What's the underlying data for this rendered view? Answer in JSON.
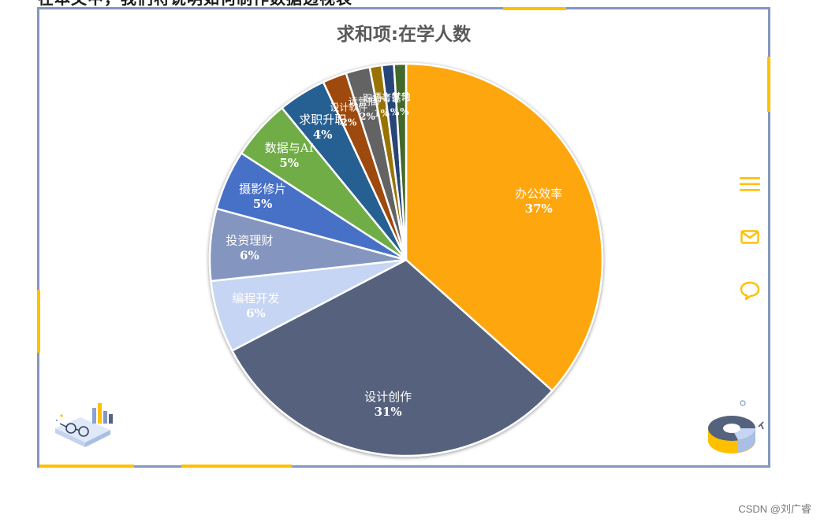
{
  "top_cut_text": "在本文中，我们将说明如何制作数据透视表",
  "chart_data": {
    "type": "pie",
    "title": "求和项:在学人数",
    "categories": [
      "办公效率",
      "设计创作",
      "编程开发",
      "投资理财",
      "摄影修片",
      "数据与AI",
      "求职升职",
      "设计软件",
      "运营推广",
      "职场考证",
      "语言学习",
      "其他"
    ],
    "values": [
      37,
      31,
      6,
      6,
      5,
      5,
      4,
      2,
      2,
      1,
      1,
      1
    ],
    "value_labels": [
      "37%",
      "31%",
      "6%",
      "6%",
      "5%",
      "5%",
      "4%",
      "2%",
      "2%",
      "1%",
      "1%",
      "1%"
    ],
    "colors": [
      "#fea60e",
      "#57627d",
      "#c5d5f3",
      "#8496bf",
      "#4670c7",
      "#70ad47",
      "#255e91",
      "#9e480e",
      "#636363",
      "#997300",
      "#264478",
      "#43682b"
    ],
    "legend": "none",
    "start_angle_deg": 0,
    "direction": "clockwise"
  },
  "side_icons": [
    "menu-icon",
    "mail-icon",
    "comment-icon"
  ],
  "decorations": [
    "glasses-books-illustration",
    "donut-chart-illustration"
  ],
  "watermark": "CSDN @刘广睿",
  "accent_color": "#ffc000",
  "frame_color": "#8596bf"
}
